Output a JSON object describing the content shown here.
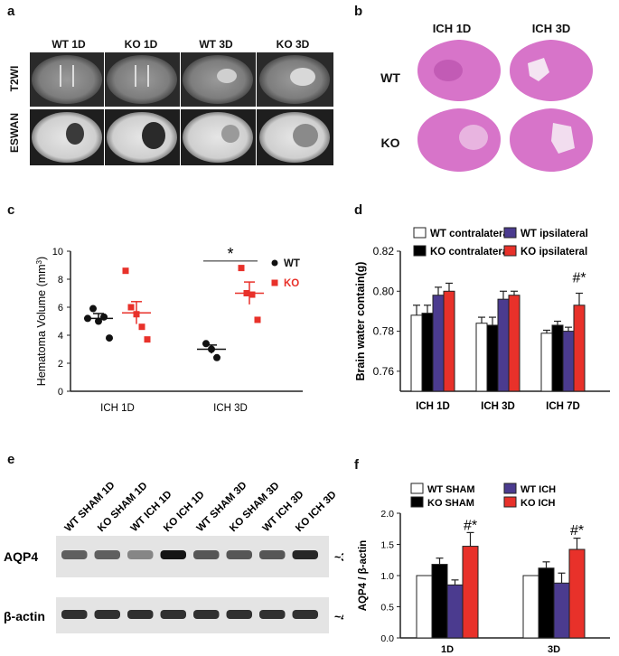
{
  "panels": {
    "a": {
      "label": "a",
      "columns": [
        "WT 1D",
        "KO 1D",
        "WT 3D",
        "KO 3D"
      ],
      "rows": [
        "T2WI",
        "ESWAN"
      ]
    },
    "b": {
      "label": "b",
      "columns": [
        "ICH 1D",
        "ICH 3D"
      ],
      "rows": [
        "WT",
        "KO"
      ]
    },
    "c": {
      "label": "c"
    },
    "d": {
      "label": "d"
    },
    "e": {
      "label": "e",
      "lanes": [
        "WT SHAM 1D",
        "KO SHAM 1D",
        "WT ICH 1D",
        "KO ICH 1D",
        "WT SHAM 3D",
        "KO SHAM 3D",
        "WT ICH 3D",
        "KO ICH 3D"
      ],
      "bands": [
        {
          "name": "AQP4",
          "size": "~34KDa",
          "intensity": [
            0.55,
            0.55,
            0.35,
            0.95,
            0.6,
            0.6,
            0.6,
            0.85
          ]
        },
        {
          "name": "β-actin",
          "size": "~42KDa",
          "intensity": [
            0.8,
            0.8,
            0.8,
            0.8,
            0.8,
            0.8,
            0.8,
            0.8
          ]
        }
      ]
    },
    "f": {
      "label": "f"
    }
  },
  "chart_data": [
    {
      "id": "c",
      "type": "scatter",
      "ylabel": "Hematoma Volume (mm",
      "ylabel_sup": "3",
      "ylabel_end": ")",
      "ylim": [
        0,
        10
      ],
      "yticks": [
        0,
        2,
        4,
        6,
        8,
        10
      ],
      "categories": [
        "ICH 1D",
        "ICH 3D"
      ],
      "legend": [
        "WT",
        "KO"
      ],
      "colors": {
        "WT": "#111111",
        "KO": "#e8312a"
      },
      "series": [
        {
          "name": "WT",
          "groups": [
            {
              "category": "ICH 1D",
              "points": [
                5.2,
                5.9,
                5.0,
                5.3,
                3.8
              ],
              "mean": 5.2,
              "sem": 0.35
            },
            {
              "category": "ICH 3D",
              "points": [
                3.4,
                3.0,
                2.4
              ],
              "mean": 3.0,
              "sem": 0.3
            }
          ]
        },
        {
          "name": "KO",
          "groups": [
            {
              "category": "ICH 1D",
              "points": [
                8.6,
                6.0,
                5.5,
                4.6,
                3.7
              ],
              "mean": 5.6,
              "sem": 0.8
            },
            {
              "category": "ICH 3D",
              "points": [
                8.8,
                7.0,
                6.9,
                5.1
              ],
              "mean": 7.0,
              "sem": 0.8
            }
          ]
        }
      ],
      "annotation": "*"
    },
    {
      "id": "d",
      "type": "bar",
      "ylabel": "Brain water contain(g)",
      "ylim": [
        0.75,
        0.82
      ],
      "yticks": [
        "0.76",
        "0.78",
        "0.80",
        "0.82"
      ],
      "categories": [
        "ICH 1D",
        "ICH 3D",
        "ICH 7D"
      ],
      "series": [
        {
          "name": "WT contralateral",
          "color": "#ffffff",
          "values": [
            0.788,
            0.784,
            0.779
          ],
          "err": [
            0.005,
            0.003,
            0.0015
          ]
        },
        {
          "name": "KO contralateral",
          "color": "#000000",
          "values": [
            0.789,
            0.783,
            0.783
          ],
          "err": [
            0.004,
            0.004,
            0.002
          ]
        },
        {
          "name": "WT ipsilateral",
          "color": "#4b3b8f",
          "values": [
            0.798,
            0.796,
            0.78
          ],
          "err": [
            0.004,
            0.004,
            0.002
          ]
        },
        {
          "name": "KO ipsilateral",
          "color": "#e8312a",
          "values": [
            0.8,
            0.798,
            0.793
          ],
          "err": [
            0.004,
            0.002,
            0.006
          ]
        }
      ],
      "annotation": "#*"
    },
    {
      "id": "f",
      "type": "bar",
      "ylabel": "AQP4 / β-actin",
      "ylim": [
        0,
        2.0
      ],
      "yticks": [
        "0.0",
        "0.5",
        "1.0",
        "1.5",
        "2.0"
      ],
      "categories": [
        "1D",
        "3D"
      ],
      "series": [
        {
          "name": "WT SHAM",
          "color": "#ffffff",
          "values": [
            1.0,
            1.0
          ],
          "err": [
            0,
            0
          ]
        },
        {
          "name": "KO SHAM",
          "color": "#000000",
          "values": [
            1.18,
            1.12
          ],
          "err": [
            0.1,
            0.1
          ]
        },
        {
          "name": "WT ICH",
          "color": "#4b3b8f",
          "values": [
            0.85,
            0.88
          ],
          "err": [
            0.08,
            0.16
          ]
        },
        {
          "name": "KO ICH",
          "color": "#e8312a",
          "values": [
            1.47,
            1.42
          ],
          "err": [
            0.22,
            0.18
          ]
        }
      ],
      "annotation": "#*"
    }
  ]
}
